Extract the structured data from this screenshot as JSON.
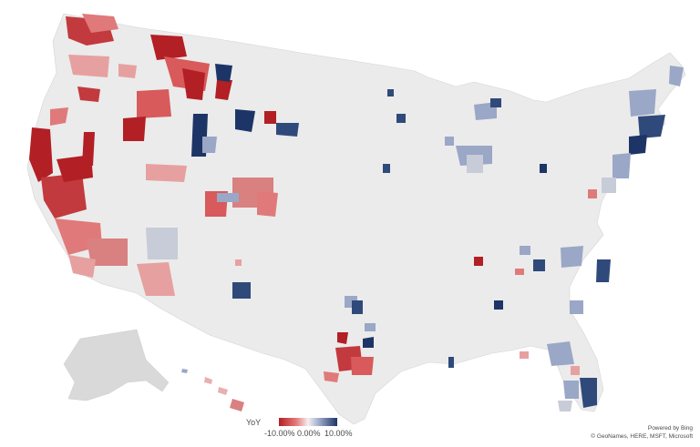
{
  "legend": {
    "title": "YoY",
    "min_label": "-10.00%",
    "mid_label": "0.00%",
    "max_label": "10.00%",
    "color_negative": "#b21f24",
    "color_neutral": "#f0eded",
    "color_positive": "#1d3466"
  },
  "credits": {
    "line1": "Powered by Bing",
    "line2": "© GeoNames, HERE, MSFT, Microsoft"
  },
  "map": {
    "region": "United States counties",
    "land_color": "#ebebeb",
    "no_data_color": "#d9d9d9"
  }
}
